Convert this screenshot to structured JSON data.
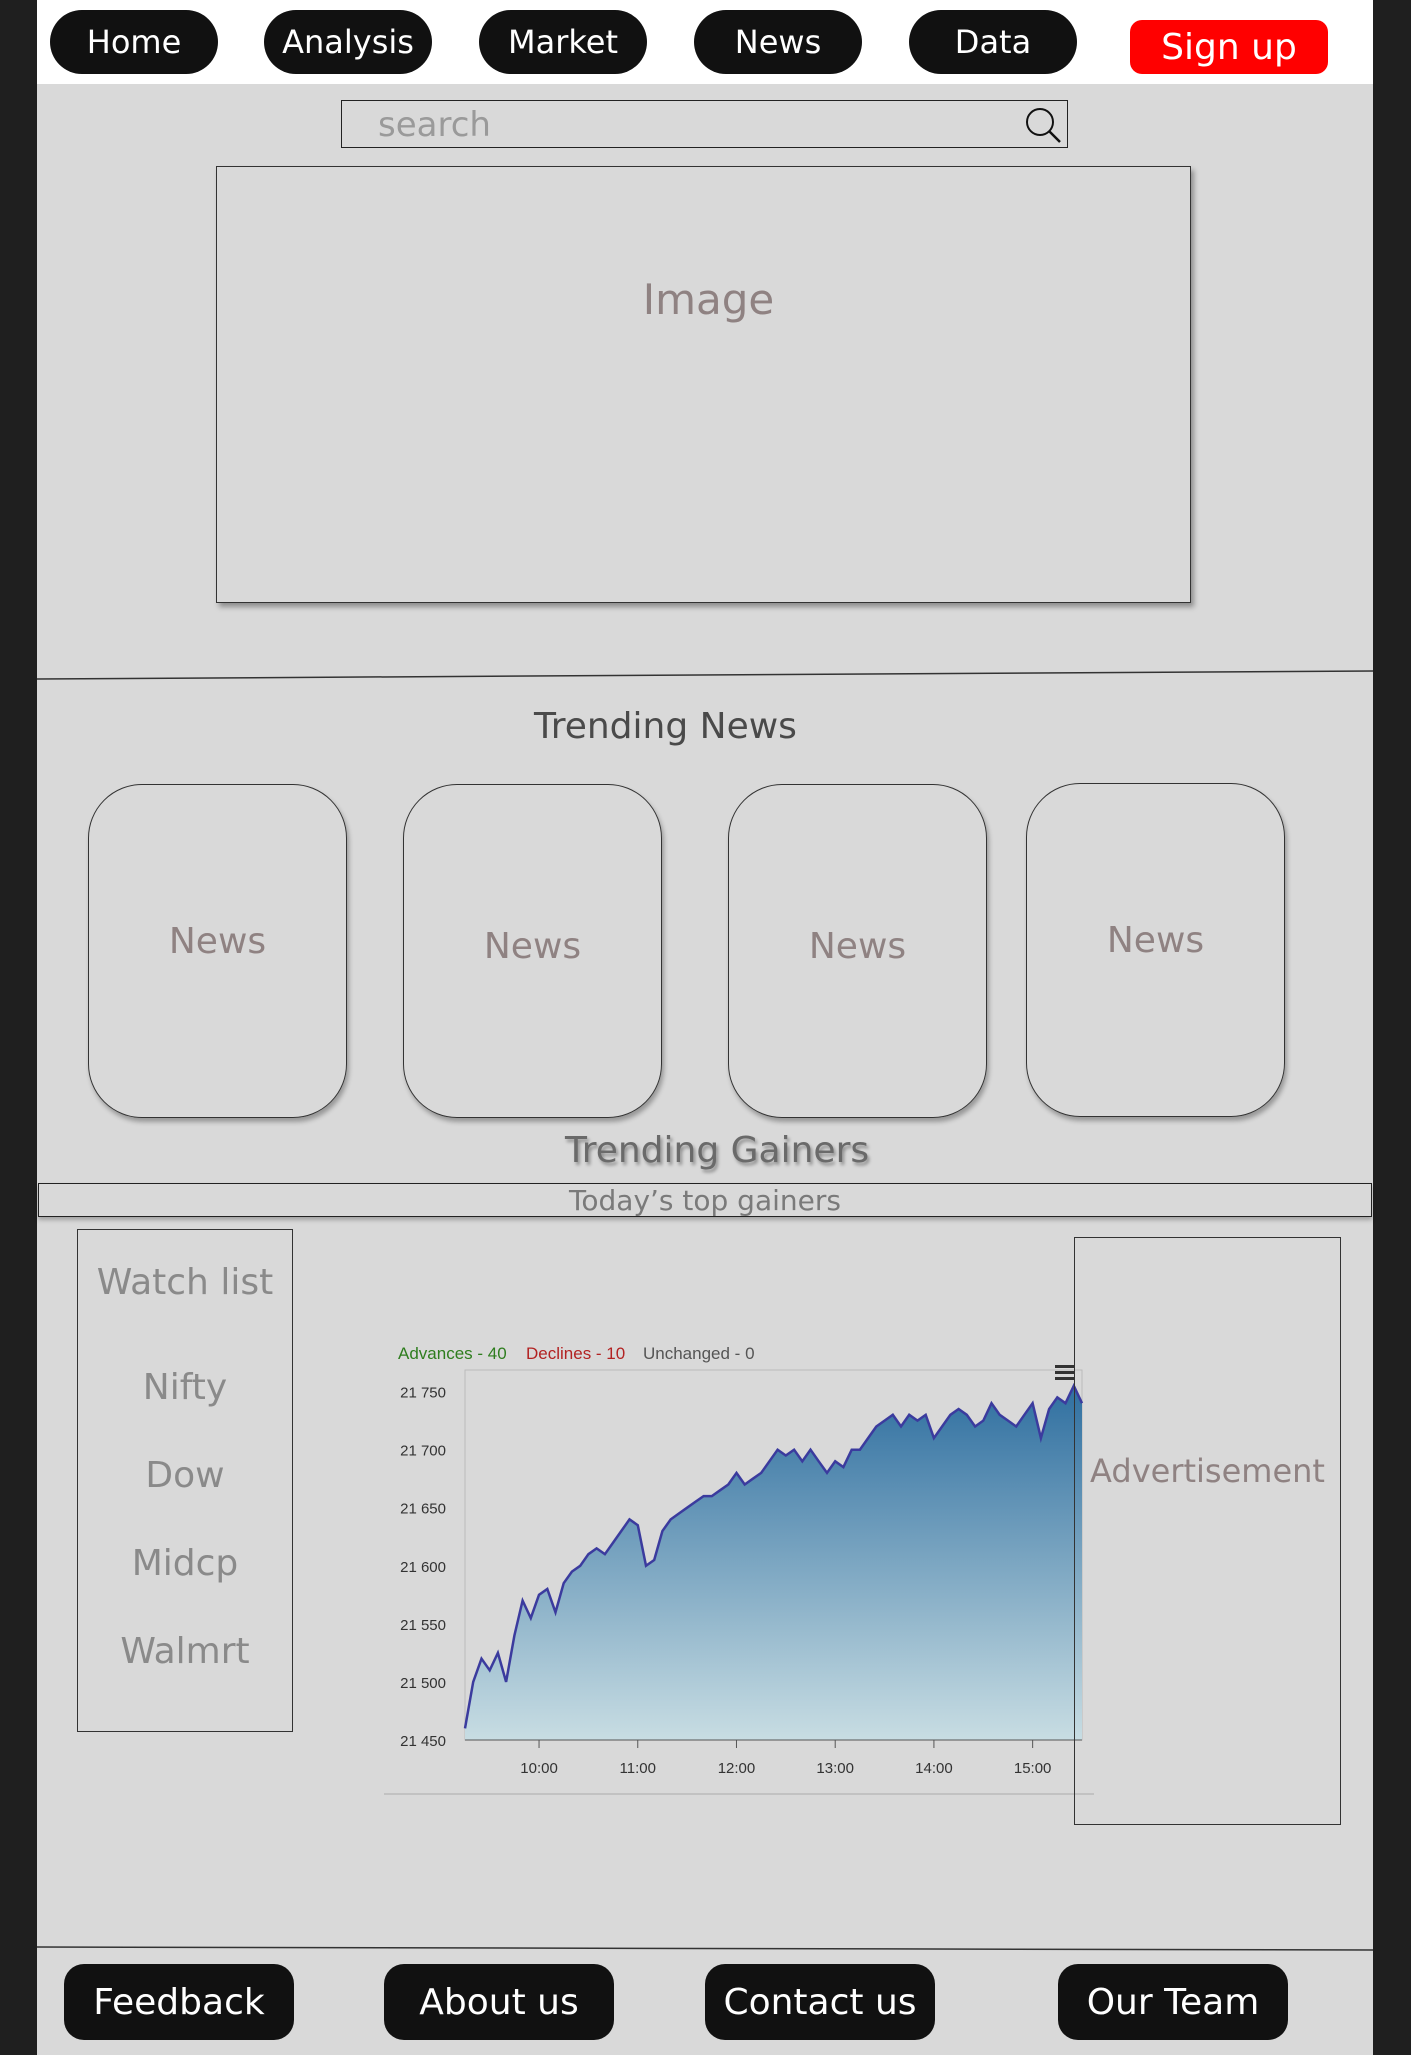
{
  "nav": {
    "items": [
      {
        "label": "Home"
      },
      {
        "label": "Analysis"
      },
      {
        "label": "Market"
      },
      {
        "label": "News"
      },
      {
        "label": "Data"
      }
    ],
    "signup_label": "Sign up"
  },
  "search": {
    "placeholder": "search"
  },
  "hero": {
    "label": "Image"
  },
  "trending_news": {
    "title": "Trending News",
    "cards": [
      {
        "label": "News"
      },
      {
        "label": "News"
      },
      {
        "label": "News"
      },
      {
        "label": "News"
      }
    ]
  },
  "trending_gainers": {
    "title": "Trending Gainers",
    "subtitle": "Today’s top gainers"
  },
  "watchlist": {
    "title": "Watch list",
    "items": [
      "Nifty",
      "Dow",
      "Midcp",
      "Walmrt"
    ]
  },
  "advertisement": {
    "label": "Advertisement"
  },
  "footer": {
    "items": [
      {
        "label": "Feedback"
      },
      {
        "label": "About us"
      },
      {
        "label": "Contact us"
      },
      {
        "label": "Our Team"
      }
    ]
  },
  "colors": {
    "nav_bg": "#111111",
    "signup_bg": "#ff0000",
    "advances": "#2e7d1e",
    "declines": "#b22222",
    "unchanged": "#555555",
    "line": "#3b3b9e",
    "area_top": "#2f6fa0",
    "area_bottom": "#c8dde3"
  },
  "chart_data": {
    "type": "area",
    "legend": [
      {
        "label": "Advances - 40",
        "color": "#2e7d1e"
      },
      {
        "label": "Declines - 10",
        "color": "#b22222"
      },
      {
        "label": "Unchanged - 0",
        "color": "#555555"
      }
    ],
    "y_ticks": [
      "21 750",
      "21 700",
      "21 650",
      "21 600",
      "21 550",
      "21 500",
      "21 450"
    ],
    "ylim": [
      21450,
      21760
    ],
    "x_ticks": [
      "10:00",
      "11:00",
      "12:00",
      "13:00",
      "14:00",
      "15:00"
    ],
    "x": [
      "09:15",
      "09:20",
      "09:25",
      "09:30",
      "09:35",
      "09:40",
      "09:45",
      "09:50",
      "09:55",
      "10:00",
      "10:05",
      "10:10",
      "10:15",
      "10:20",
      "10:25",
      "10:30",
      "10:35",
      "10:40",
      "10:45",
      "10:50",
      "10:55",
      "11:00",
      "11:05",
      "11:10",
      "11:15",
      "11:20",
      "11:25",
      "11:30",
      "11:35",
      "11:40",
      "11:45",
      "11:50",
      "11:55",
      "12:00",
      "12:05",
      "12:10",
      "12:15",
      "12:20",
      "12:25",
      "12:30",
      "12:35",
      "12:40",
      "12:45",
      "12:50",
      "12:55",
      "13:00",
      "13:05",
      "13:10",
      "13:15",
      "13:20",
      "13:25",
      "13:30",
      "13:35",
      "13:40",
      "13:45",
      "13:50",
      "13:55",
      "14:00",
      "14:05",
      "14:10",
      "14:15",
      "14:20",
      "14:25",
      "14:30",
      "14:35",
      "14:40",
      "14:45",
      "14:50",
      "14:55",
      "15:00",
      "15:05",
      "15:10",
      "15:15",
      "15:20",
      "15:25",
      "15:30"
    ],
    "values": [
      21460,
      21500,
      21520,
      21510,
      21525,
      21500,
      21540,
      21570,
      21555,
      21575,
      21580,
      21560,
      21585,
      21595,
      21600,
      21610,
      21615,
      21610,
      21620,
      21630,
      21640,
      21635,
      21600,
      21605,
      21630,
      21640,
      21645,
      21650,
      21655,
      21660,
      21660,
      21665,
      21670,
      21680,
      21670,
      21675,
      21680,
      21690,
      21700,
      21695,
      21700,
      21690,
      21700,
      21690,
      21680,
      21690,
      21685,
      21700,
      21700,
      21710,
      21720,
      21725,
      21730,
      21720,
      21730,
      21725,
      21730,
      21710,
      21720,
      21730,
      21735,
      21730,
      21720,
      21725,
      21740,
      21730,
      21725,
      21720,
      21730,
      21740,
      21710,
      21735,
      21745,
      21740,
      21755,
      21740
    ],
    "series": [
      {
        "values": "see values"
      }
    ]
  }
}
